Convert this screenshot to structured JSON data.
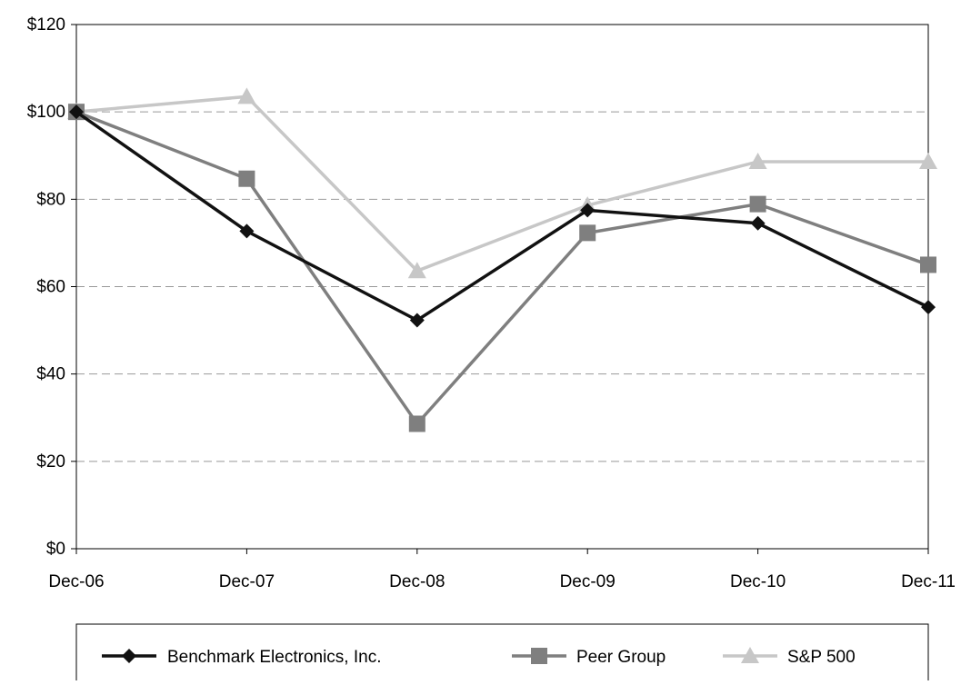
{
  "chart_data": {
    "type": "line",
    "categories": [
      "Dec-06",
      "Dec-07",
      "Dec-08",
      "Dec-09",
      "Dec-10",
      "Dec-11"
    ],
    "y_ticks": [
      "$0",
      "$20",
      "$40",
      "$60",
      "$80",
      "$100",
      "$120"
    ],
    "ylim": [
      0,
      120
    ],
    "grid": true,
    "legend_position": "bottom",
    "series": [
      {
        "name": "Benchmark Electronics, Inc.",
        "values": [
          100,
          72.7,
          52.3,
          77.5,
          74.5,
          55.3
        ],
        "color": "#111111",
        "marker": "diamond"
      },
      {
        "name": "Peer Group",
        "values": [
          100,
          84.7,
          28.6,
          72.3,
          78.9,
          65.0
        ],
        "color": "#7f7f7f",
        "marker": "square"
      },
      {
        "name": "S&P 500",
        "values": [
          100,
          103.5,
          63.6,
          78.6,
          88.6,
          88.6
        ],
        "color": "#c7c7c7",
        "marker": "triangle"
      }
    ]
  }
}
